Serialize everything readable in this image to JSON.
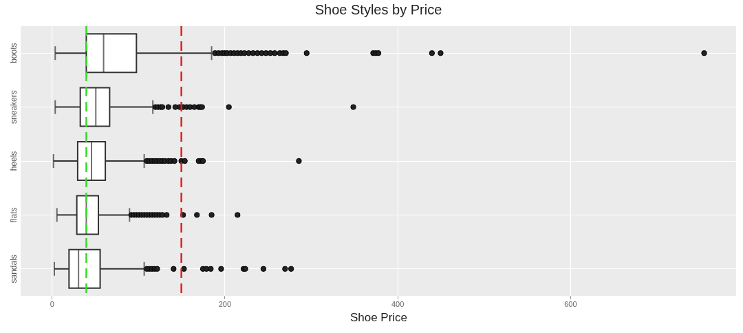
{
  "chart_data": {
    "type": "box",
    "title": "Shoe Styles by Price",
    "xlabel": "Shoe Price",
    "orientation": "horizontal",
    "categories": [
      "boots",
      "sneakers",
      "heels",
      "flats",
      "sandals"
    ],
    "boxes": [
      {
        "low": 4,
        "q1": 40,
        "median": 60,
        "q3": 98,
        "high": 185,
        "outliers": [
          189,
          193,
          197,
          200,
          203,
          207,
          211,
          215,
          219,
          223,
          228,
          233,
          238,
          243,
          248,
          253,
          258,
          264,
          268,
          271,
          295,
          372,
          375,
          378,
          440,
          450,
          755
        ]
      },
      {
        "low": 4,
        "q1": 33,
        "median": 51,
        "q3": 67,
        "high": 117,
        "outliers": [
          120,
          123,
          126,
          128,
          135,
          143,
          148,
          152,
          156,
          160,
          165,
          170,
          172,
          174,
          205,
          349
        ]
      },
      {
        "low": 2,
        "q1": 30,
        "median": 46,
        "q3": 62,
        "high": 107,
        "outliers": [
          110,
          113,
          116,
          119,
          122,
          125,
          128,
          131,
          135,
          138,
          142,
          150,
          154,
          170,
          173,
          175,
          286
        ]
      },
      {
        "low": 6,
        "q1": 29,
        "median": 40,
        "q3": 54,
        "high": 90,
        "outliers": [
          92,
          95,
          98,
          101,
          104,
          107,
          110,
          113,
          116,
          119,
          122,
          125,
          128,
          133,
          152,
          168,
          185,
          215
        ]
      },
      {
        "low": 3,
        "q1": 20,
        "median": 31,
        "q3": 56,
        "high": 107,
        "outliers": [
          110,
          113,
          116,
          119,
          122,
          141,
          153,
          175,
          179,
          184,
          196,
          222,
          224,
          245,
          270,
          277
        ]
      }
    ],
    "xlim": [
      -36,
      792
    ],
    "xticks": [
      0,
      200,
      400,
      600
    ],
    "grid": true,
    "ref_lines": [
      {
        "axis": "x",
        "value": 40,
        "color": "#33dd22",
        "line_style": "dashed"
      },
      {
        "axis": "x",
        "value": 150,
        "color": "#dd2222",
        "line_style": "dashed"
      }
    ]
  }
}
